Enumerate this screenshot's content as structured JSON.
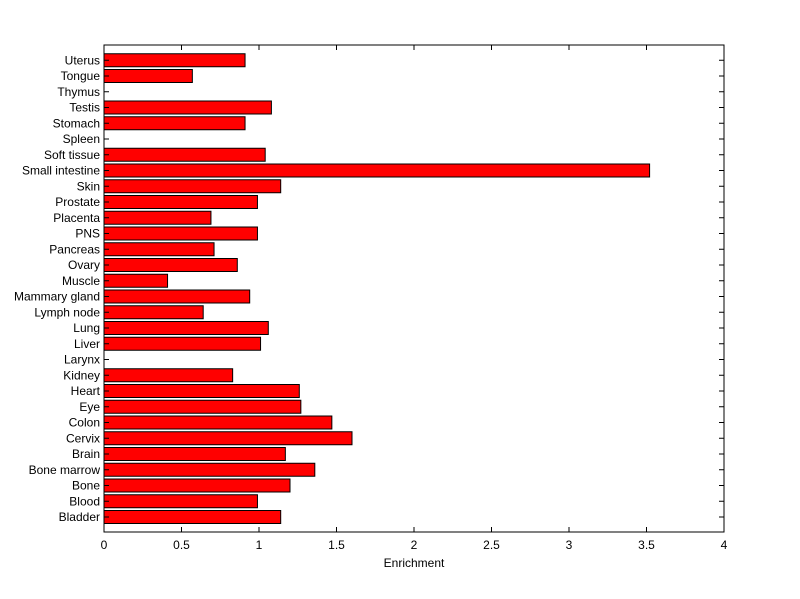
{
  "chart_data": {
    "type": "bar",
    "orientation": "horizontal",
    "title": "",
    "xlabel": "Enrichment",
    "ylabel": "",
    "xlim": [
      0,
      4
    ],
    "xticks": [
      "0",
      "0.5",
      "1",
      "1.5",
      "2",
      "2.5",
      "3",
      "3.5",
      "4"
    ],
    "grid": false,
    "bar_color": "#ff0000",
    "categories": [
      "Bladder",
      "Blood",
      "Bone",
      "Bone marrow",
      "Brain",
      "Cervix",
      "Colon",
      "Eye",
      "Heart",
      "Kidney",
      "Larynx",
      "Liver",
      "Lung",
      "Lymph node",
      "Mammary gland",
      "Muscle",
      "Ovary",
      "Pancreas",
      "PNS",
      "Placenta",
      "Prostate",
      "Skin",
      "Small intestine",
      "Soft tissue",
      "Spleen",
      "Stomach",
      "Testis",
      "Thymus",
      "Tongue",
      "Uterus"
    ],
    "values": [
      1.14,
      0.99,
      1.2,
      1.36,
      1.17,
      1.6,
      1.47,
      1.27,
      1.26,
      0.83,
      0.0,
      1.01,
      1.06,
      0.64,
      0.94,
      0.41,
      0.86,
      0.71,
      0.99,
      0.69,
      0.99,
      1.14,
      3.52,
      1.04,
      0.0,
      0.91,
      1.08,
      0.0,
      0.57,
      0.91
    ]
  }
}
